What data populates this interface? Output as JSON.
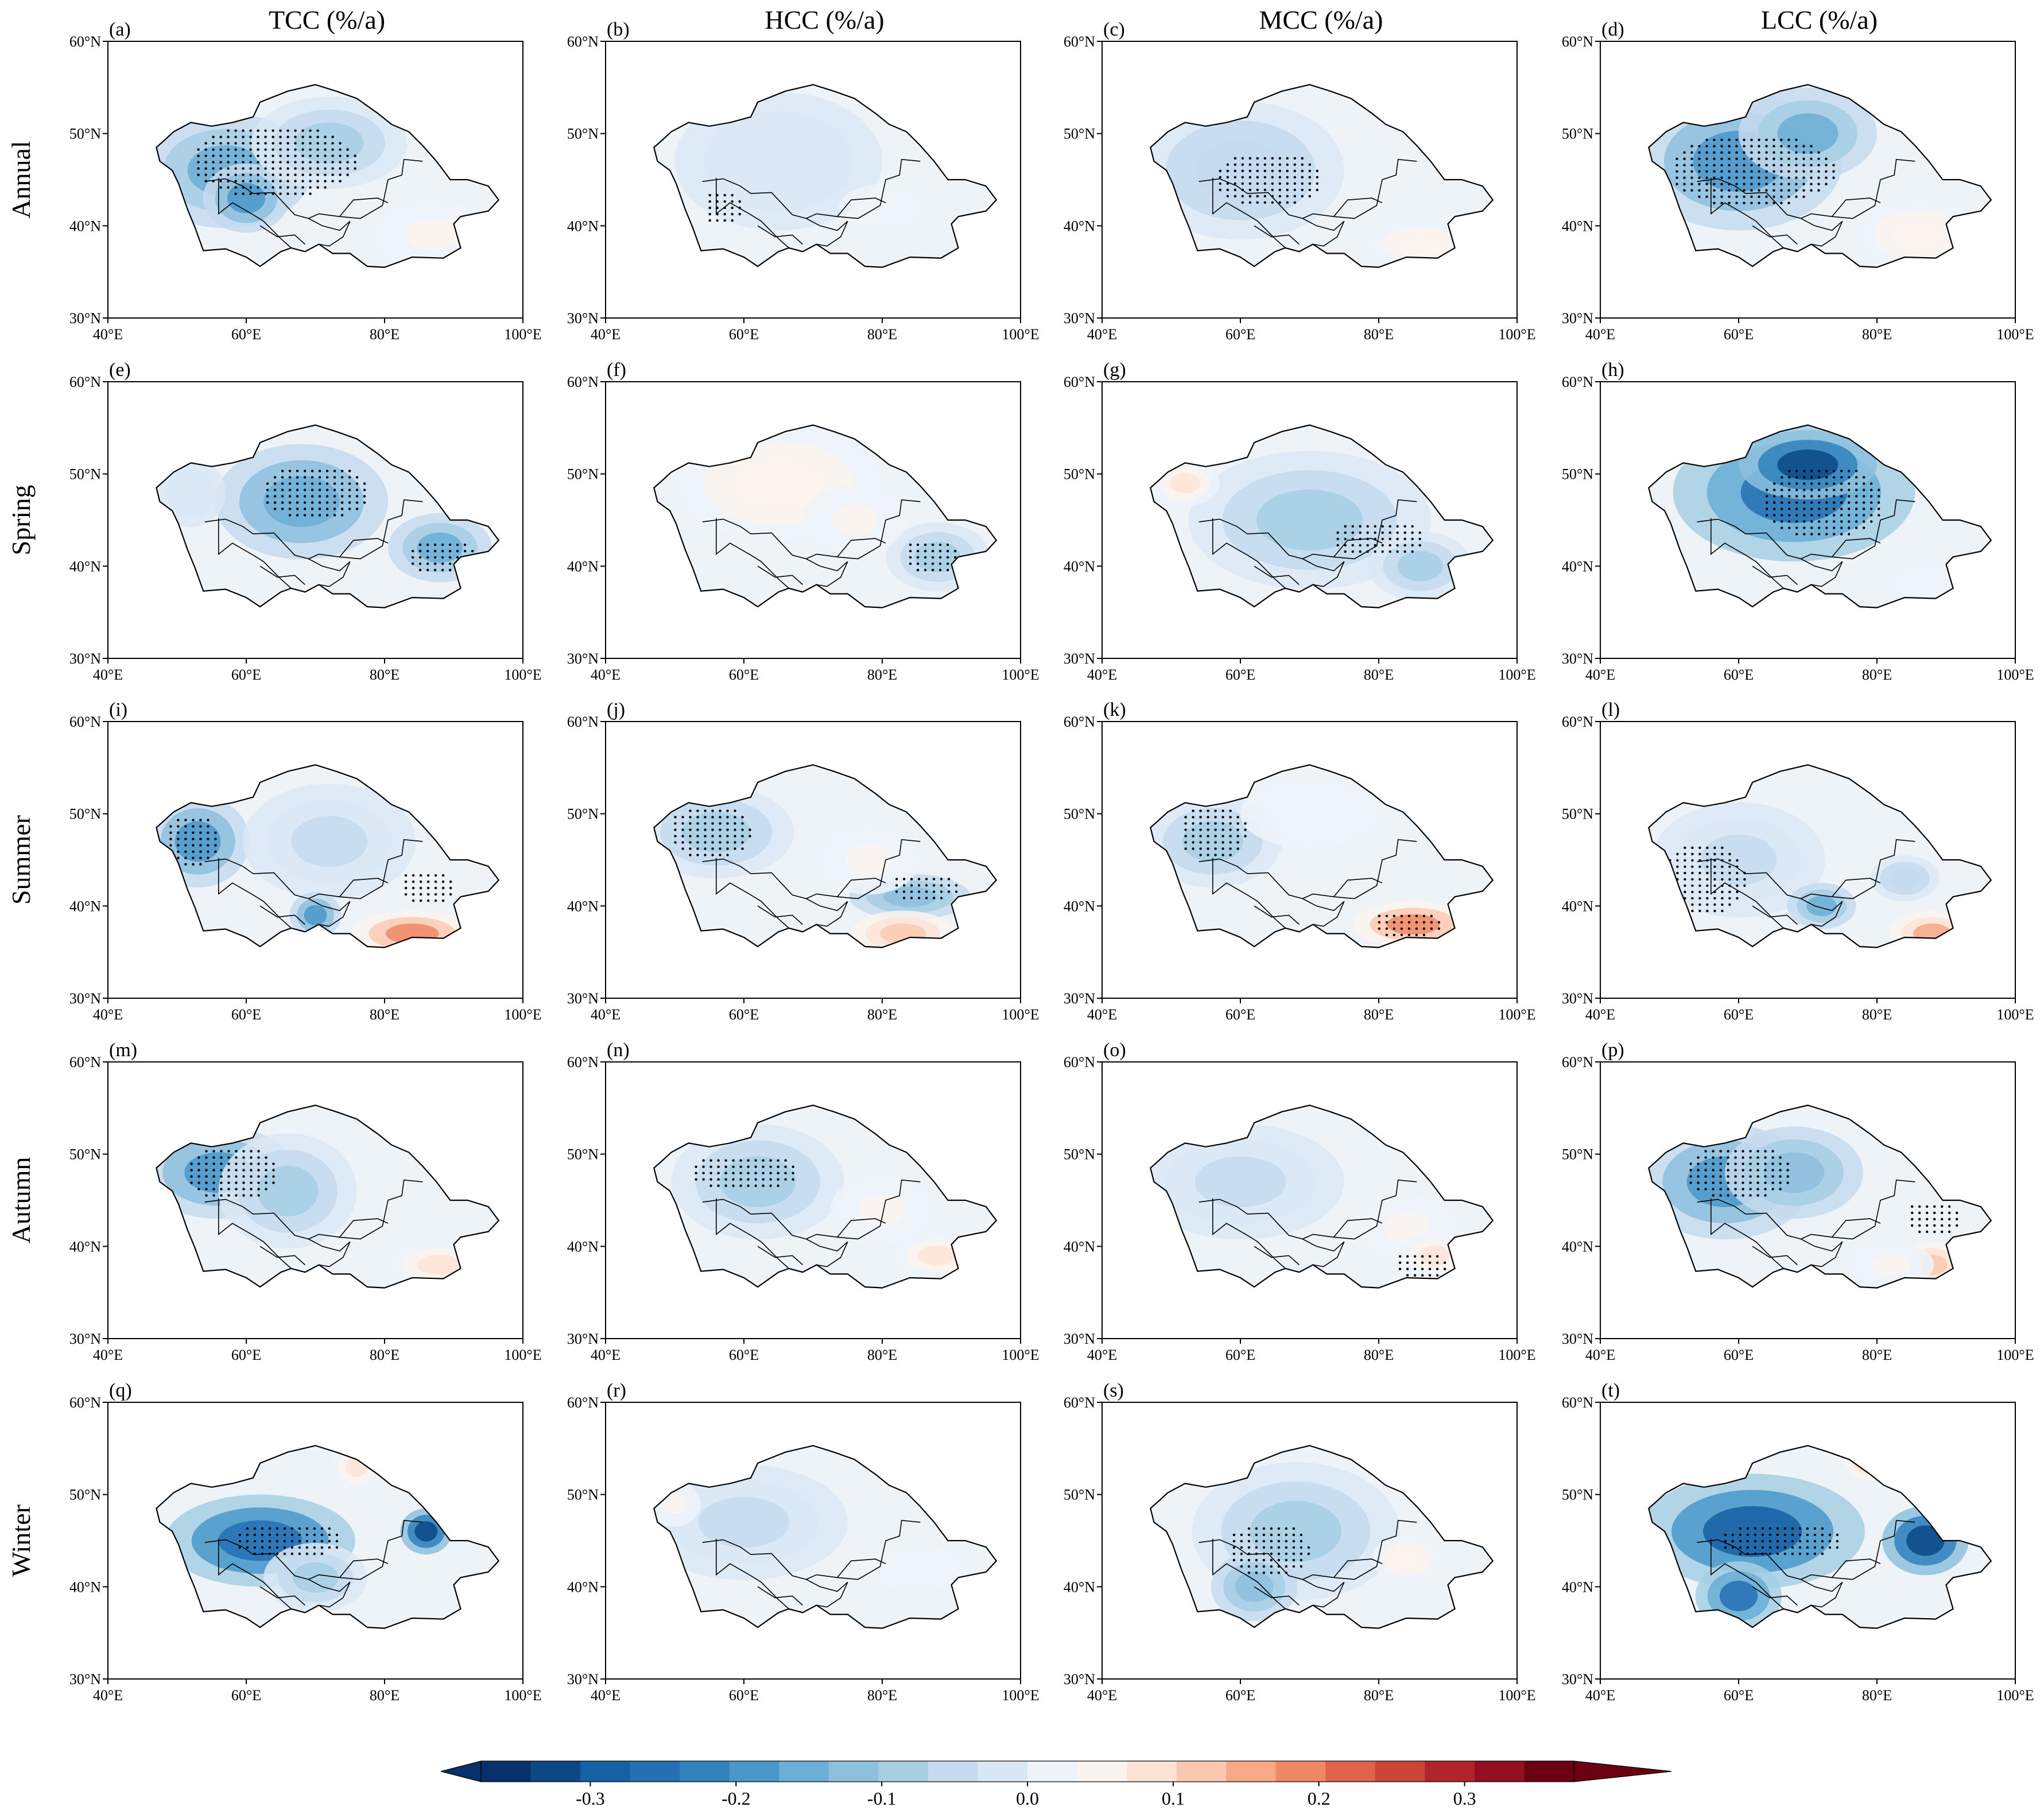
{
  "columns": [
    {
      "title": "TCC (%/a)"
    },
    {
      "title": "HCC (%/a)"
    },
    {
      "title": "MCC (%/a)"
    },
    {
      "title": "LCC (%/a)"
    }
  ],
  "rows": [
    {
      "label": "Annual"
    },
    {
      "label": "Spring"
    },
    {
      "label": "Summer"
    },
    {
      "label": "Autumn"
    },
    {
      "label": "Winter"
    }
  ],
  "panel_letters": [
    "(a)",
    "(b)",
    "(c)",
    "(d)",
    "(e)",
    "(f)",
    "(g)",
    "(h)",
    "(i)",
    "(j)",
    "(k)",
    "(l)",
    "(m)",
    "(n)",
    "(o)",
    "(p)",
    "(q)",
    "(r)",
    "(s)",
    "(t)"
  ],
  "lat_ticks": [
    "30°N",
    "40°N",
    "50°N",
    "60°N"
  ],
  "lon_ticks": [
    "40°E",
    "60°E",
    "80°E",
    "100°E"
  ],
  "colorbar": {
    "ticks": [
      "-0.3",
      "-0.2",
      "-0.1",
      "0.0",
      "0.1",
      "0.2",
      "0.3"
    ],
    "tick_values": [
      -0.3,
      -0.2,
      -0.1,
      0.0,
      0.1,
      0.2,
      0.3
    ],
    "range": [
      -0.375,
      0.375
    ],
    "extend": "both",
    "colors": [
      "#08306b",
      "#0b4885",
      "#1660a6",
      "#2470b3",
      "#3182bd",
      "#4a98c9",
      "#6baed6",
      "#8dc0dd",
      "#a6cfe4",
      "#c6dbef",
      "#dae8f5",
      "#edf3f9",
      "#fbf3ef",
      "#fde3d6",
      "#fcc9b0",
      "#f6a887",
      "#f08866",
      "#e0644b",
      "#cb4438",
      "#b2242b",
      "#930f22",
      "#6b0011"
    ]
  },
  "colors": {
    "frame": "#000000",
    "background": "#ffffff"
  }
}
